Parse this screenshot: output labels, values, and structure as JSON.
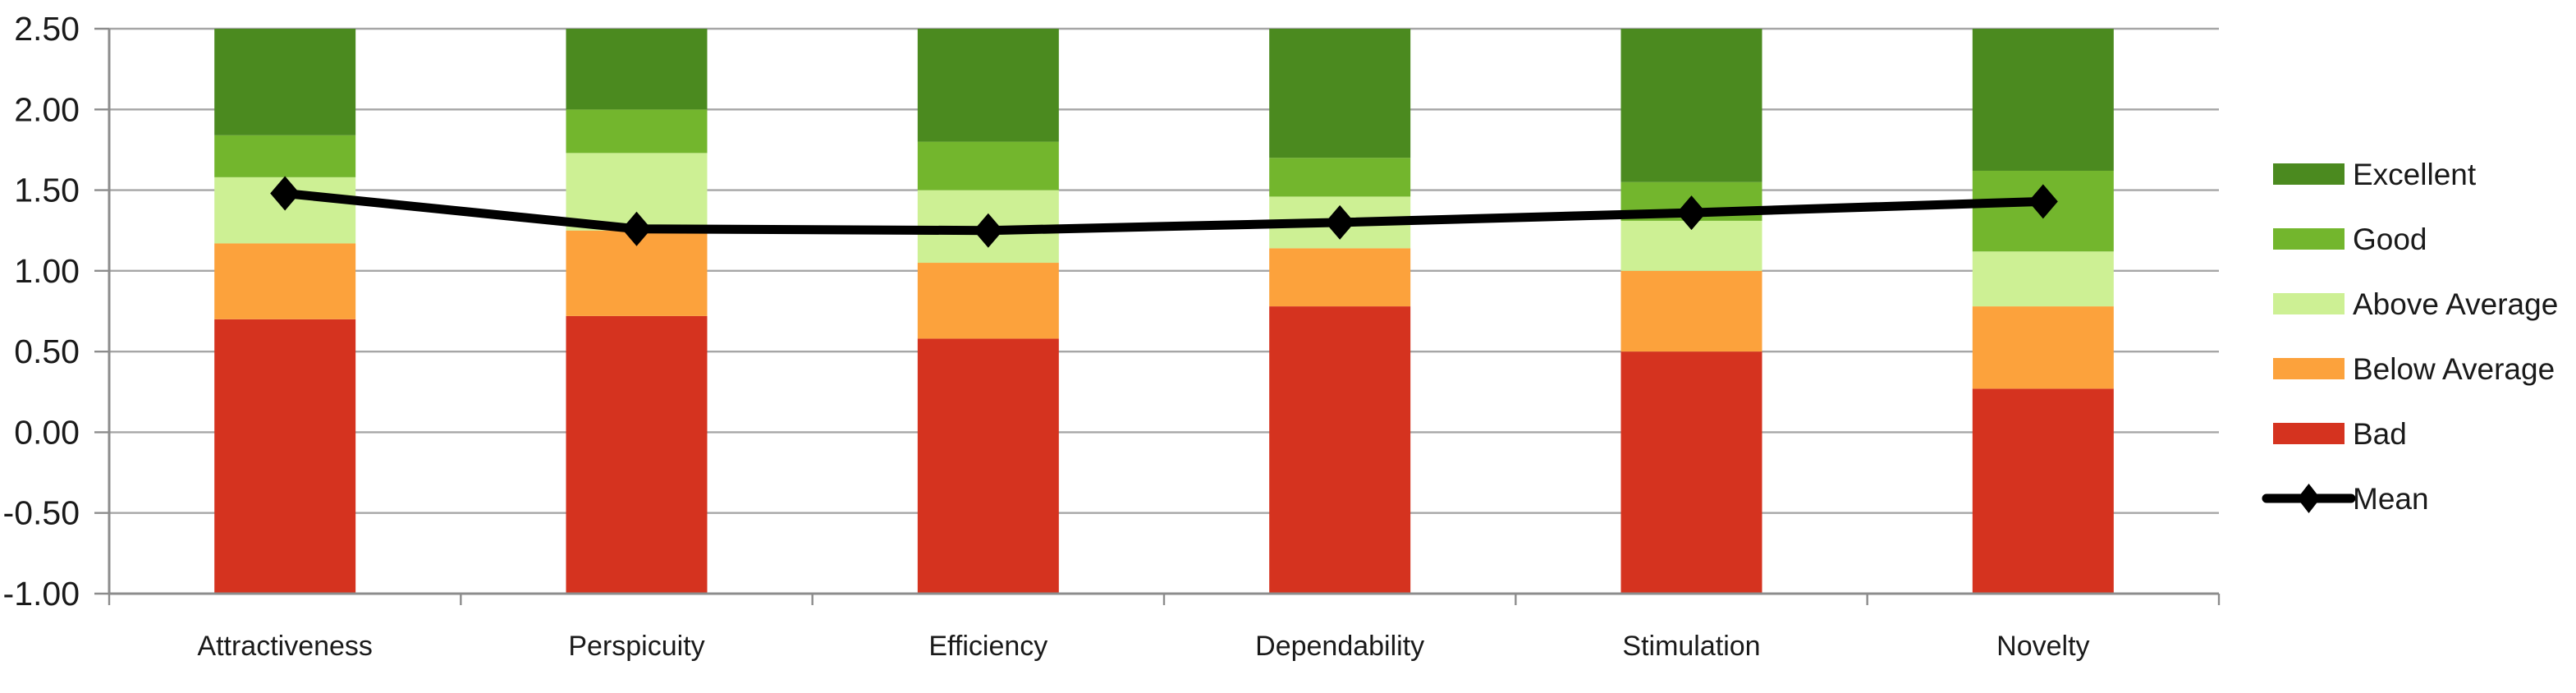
{
  "chart_data": {
    "type": "bar",
    "subtype": "stacked-bar-with-mean-line",
    "title": "",
    "categories": [
      "Attractiveness",
      "Perspicuity",
      "Efficiency",
      "Dependability",
      "Stimulation",
      "Novelty"
    ],
    "y_axis": {
      "min": -1.0,
      "max": 2.5,
      "step": 0.5,
      "tick_labels": [
        "2.50",
        "2.00",
        "1.50",
        "1.00",
        "0.50",
        "0.00",
        "-0.50",
        "-1.00"
      ]
    },
    "base_value": -1.0,
    "series": [
      {
        "name": "Bad",
        "color": "#D5331F",
        "upper_bounds": [
          0.7,
          0.72,
          0.58,
          0.78,
          0.5,
          0.27
        ]
      },
      {
        "name": "Below Average",
        "color": "#FCA23C",
        "upper_bounds": [
          1.17,
          1.25,
          1.05,
          1.14,
          1.0,
          0.78
        ]
      },
      {
        "name": "Above Average",
        "color": "#CDF094",
        "upper_bounds": [
          1.58,
          1.73,
          1.5,
          1.46,
          1.31,
          1.12
        ]
      },
      {
        "name": "Good",
        "color": "#73B62D",
        "upper_bounds": [
          1.84,
          2.0,
          1.8,
          1.7,
          1.55,
          1.62
        ]
      },
      {
        "name": "Excellent",
        "color": "#4B8A1F",
        "upper_bounds": [
          2.5,
          2.5,
          2.5,
          2.5,
          2.5,
          2.5
        ]
      }
    ],
    "mean_line": {
      "name": "Mean",
      "color": "#000000",
      "values": [
        1.48,
        1.26,
        1.25,
        1.3,
        1.36,
        1.43
      ]
    },
    "legend": {
      "position": "right",
      "items": [
        {
          "label": "Excellent",
          "swatch": "rect",
          "color": "#4B8A1F"
        },
        {
          "label": "Good",
          "swatch": "rect",
          "color": "#73B62D"
        },
        {
          "label": "Above Average",
          "swatch": "rect",
          "color": "#CDF094"
        },
        {
          "label": "Below Average",
          "swatch": "rect",
          "color": "#FCA23C"
        },
        {
          "label": "Bad",
          "swatch": "rect",
          "color": "#D5331F"
        },
        {
          "label": "Mean",
          "swatch": "line-diamond",
          "color": "#000000"
        }
      ]
    },
    "grid": true,
    "colors": {
      "gridline": "#A6A6A6",
      "axis": "#8C8C8C",
      "text": "#1A1A1A",
      "background": "#FFFFFF"
    }
  }
}
